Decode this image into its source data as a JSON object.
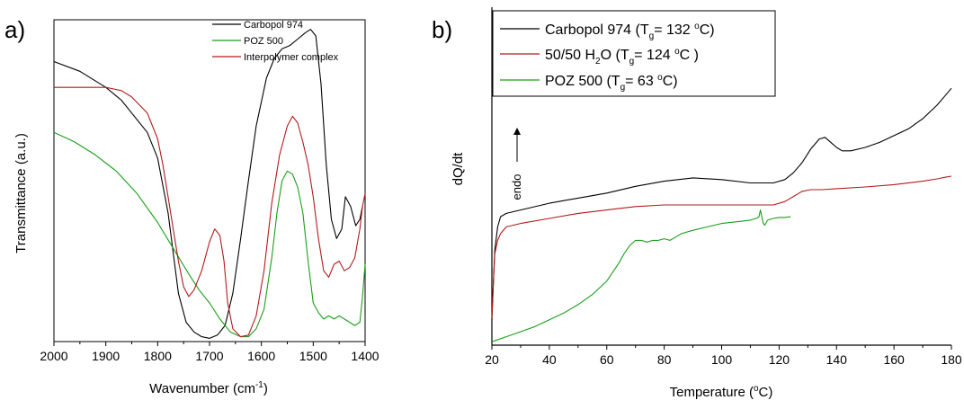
{
  "panel_a": {
    "label": "a)",
    "xlabel": "Wavenumber (cm",
    "xlabel_sup": "-1",
    "xlabel_end": ")",
    "ylabel": "Transmittance (a.u.)"
  },
  "panel_b": {
    "label": "b)",
    "xlabel": "Temperature (",
    "xlabel_sup": "o",
    "xlabel_end": "C)",
    "ylabel": "dQ/dt",
    "annotation": "endo"
  },
  "legend_b": [
    {
      "pre": "Carbopol 974 (T",
      "sub": "g",
      "mid": "= 132 ",
      "sup": "o",
      "post": "C)"
    },
    {
      "pre": "50/50 H",
      "sub": "2",
      "mid": "O (T",
      "sub2": "g",
      "mid2": "= 124 ",
      "sup": "o",
      "post": "C )"
    },
    {
      "pre": "POZ 500 (T",
      "sub": "g",
      "mid": "= 63 ",
      "sup": "o",
      "post": "C)"
    }
  ],
  "chart_data": [
    {
      "type": "line",
      "panel": "a",
      "xlabel": "Wavenumber (cm-1)",
      "ylabel": "Transmittance (a.u.)",
      "xlim": [
        2000,
        1400
      ],
      "x_reversed": true,
      "ylim": [
        0,
        100
      ],
      "y_ticks_labeled": false,
      "grid": false,
      "legend_position": "top-right",
      "x_ticks": [
        2000,
        1900,
        1800,
        1700,
        1600,
        1500,
        1400
      ],
      "series": [
        {
          "name": "Carbopol 974",
          "color": "#000000",
          "x": [
            2000,
            1950,
            1900,
            1870,
            1850,
            1820,
            1800,
            1780,
            1760,
            1745,
            1730,
            1715,
            1700,
            1685,
            1670,
            1655,
            1640,
            1625,
            1610,
            1590,
            1575,
            1560,
            1545,
            1530,
            1515,
            1505,
            1495,
            1485,
            1475,
            1465,
            1455,
            1445,
            1438,
            1428,
            1418,
            1410,
            1405
          ],
          "y": [
            87,
            84,
            79,
            75,
            71,
            65,
            57,
            40,
            15,
            6,
            3,
            1.5,
            1,
            2,
            5,
            15,
            32,
            50,
            67,
            82,
            88,
            91,
            92,
            94,
            96,
            97,
            95,
            80,
            55,
            38,
            32,
            35,
            45,
            42,
            36,
            38,
            42
          ]
        },
        {
          "name": "POZ 500",
          "color": "#1a9e1a",
          "x": [
            2000,
            1960,
            1920,
            1880,
            1840,
            1800,
            1770,
            1740,
            1720,
            1700,
            1680,
            1660,
            1640,
            1625,
            1610,
            1595,
            1580,
            1570,
            1560,
            1550,
            1540,
            1530,
            1520,
            1510,
            1500,
            1490,
            1480,
            1470,
            1460,
            1450,
            1440,
            1430,
            1420,
            1410,
            1405,
            1400
          ],
          "y": [
            65,
            62,
            58,
            53,
            46,
            37,
            29,
            21,
            16,
            12,
            7,
            3,
            1.5,
            1.5,
            4,
            10,
            26,
            40,
            50,
            53,
            52,
            48,
            40,
            25,
            12,
            9,
            7,
            8,
            7,
            8,
            7,
            6,
            5,
            6,
            14,
            24
          ]
        },
        {
          "name": "Interpolymer complex",
          "color": "#b31b1b",
          "x": [
            2000,
            1950,
            1900,
            1870,
            1850,
            1820,
            1800,
            1790,
            1780,
            1770,
            1760,
            1750,
            1740,
            1730,
            1715,
            1700,
            1690,
            1680,
            1672,
            1665,
            1655,
            1640,
            1625,
            1610,
            1595,
            1580,
            1565,
            1550,
            1540,
            1530,
            1520,
            1510,
            1500,
            1490,
            1480,
            1470,
            1460,
            1450,
            1440,
            1430,
            1420,
            1410,
            1405,
            1400
          ],
          "y": [
            79,
            79,
            79,
            78,
            76,
            71,
            63,
            55,
            45,
            35,
            25,
            17,
            14,
            16,
            22,
            31,
            35,
            33,
            25,
            12,
            4,
            1.5,
            2,
            8,
            22,
            43,
            58,
            67,
            70,
            68,
            62,
            55,
            45,
            32,
            22,
            20,
            24,
            25,
            22,
            23,
            26,
            35,
            42,
            46
          ]
        }
      ]
    },
    {
      "type": "line",
      "panel": "b",
      "xlabel": "Temperature (oC)",
      "ylabel": "dQ/dt",
      "xlim": [
        20,
        180
      ],
      "ylim": [
        0,
        100
      ],
      "y_ticks_labeled": false,
      "grid": false,
      "legend_position": "top-left",
      "x_ticks": [
        20,
        40,
        60,
        80,
        100,
        120,
        140,
        160,
        180
      ],
      "series": [
        {
          "name": "Carbopol 974 (Tg= 132 oC)",
          "color": "#000000",
          "x": [
            20,
            20.5,
            21,
            22,
            23,
            25,
            30,
            40,
            50,
            60,
            70,
            80,
            90,
            100,
            110,
            118,
            122,
            125,
            128,
            131,
            134,
            136,
            138,
            140,
            142,
            145,
            150,
            155,
            160,
            165,
            170,
            175,
            178,
            180
          ],
          "y": [
            8,
            18,
            28,
            35,
            38,
            39,
            40,
            42,
            43.5,
            45,
            47,
            48.5,
            49.5,
            49,
            48,
            48,
            49,
            51,
            54,
            58,
            61,
            61.5,
            60,
            58.5,
            57.5,
            57.5,
            58.5,
            60,
            62,
            64,
            67,
            71,
            74,
            76
          ]
        },
        {
          "name": "50/50 H2O (Tg= 124 oC )",
          "color": "#b31b1b",
          "x": [
            20,
            20.5,
            21,
            22,
            23,
            25,
            30,
            40,
            50,
            60,
            70,
            80,
            90,
            100,
            110,
            118,
            122,
            125,
            128,
            131,
            135,
            140,
            150,
            160,
            170,
            175,
            178,
            180
          ],
          "y": [
            8,
            18,
            27,
            31,
            33,
            35,
            36,
            37.5,
            39,
            40,
            41,
            41.5,
            41.5,
            41.5,
            41.5,
            41.5,
            42.5,
            44,
            45.5,
            46,
            46,
            46.3,
            46.8,
            47.5,
            48.5,
            49.2,
            49.7,
            50
          ]
        },
        {
          "name": "POZ 500 (Tg= 63 oC)",
          "color": "#1a9e1a",
          "x": [
            20,
            25,
            30,
            35,
            40,
            45,
            50,
            55,
            60,
            62,
            64,
            66,
            68,
            70,
            72,
            74,
            76,
            78,
            80,
            82,
            84,
            86,
            90,
            95,
            100,
            105,
            110,
            112,
            113,
            113.5,
            114,
            114.5,
            115,
            116,
            118,
            120,
            122,
            124
          ],
          "y": [
            1,
            2.5,
            4,
            5.5,
            7.5,
            9.5,
            12,
            15,
            19,
            21.5,
            24,
            27,
            29.5,
            31,
            31,
            30.5,
            31,
            31,
            31.5,
            31,
            32,
            33,
            34,
            35,
            36,
            36.5,
            37,
            37.5,
            38,
            40,
            38,
            36,
            35.5,
            37,
            37.5,
            37.8,
            37.8,
            38
          ]
        }
      ]
    }
  ]
}
